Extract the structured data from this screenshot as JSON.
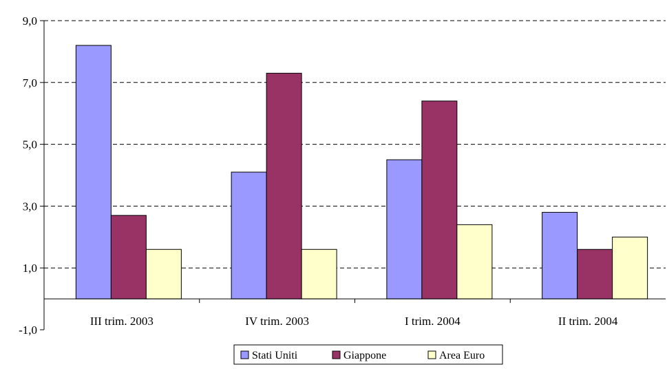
{
  "chart_data": {
    "type": "bar",
    "categories": [
      "III trim. 2003",
      "IV trim. 2003",
      "I trim. 2004",
      "II trim. 2004"
    ],
    "series": [
      {
        "name": "Stati Uniti",
        "color": "#9999ff",
        "values": [
          8.2,
          4.1,
          4.5,
          2.8
        ]
      },
      {
        "name": "Giappone",
        "color": "#993366",
        "values": [
          2.7,
          7.3,
          6.4,
          1.6
        ]
      },
      {
        "name": "Area Euro",
        "color": "#ffffcc",
        "values": [
          1.6,
          1.6,
          2.4,
          2.0
        ]
      }
    ],
    "ylim": [
      -1,
      9
    ],
    "yticks": [
      {
        "value": 9,
        "label": "9,0"
      },
      {
        "value": 7,
        "label": "7,0"
      },
      {
        "value": 5,
        "label": "5,0"
      },
      {
        "value": 3,
        "label": "3,0"
      },
      {
        "value": 1,
        "label": "1,0"
      },
      {
        "value": -1,
        "label": "-1,0"
      }
    ],
    "grid": "dashed horizontal",
    "legend_position": "bottom"
  }
}
